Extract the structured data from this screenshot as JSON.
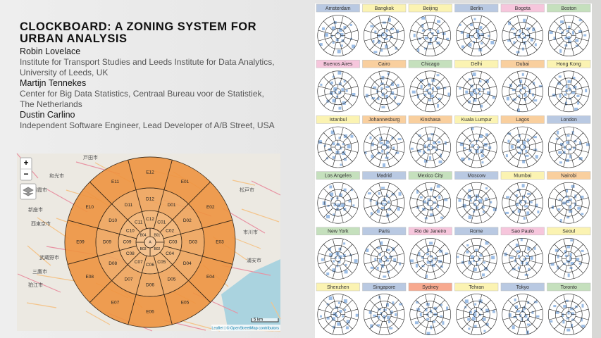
{
  "header": {
    "title": "CLOCKBOARD: A ZONING SYSTEM FOR URBAN ANALYSIS"
  },
  "authors": [
    {
      "name": "Robin Lovelace",
      "affiliation": "Institute for Transport Studies and Leeds Institute for Data Analytics, University of Leeds, UK"
    },
    {
      "name": "Martijn Tennekes",
      "affiliation": "Center for Big Data Statistics, Centraal Bureau voor de Statistiek, The Netherlands"
    },
    {
      "name": "Dustin Carlino",
      "affiliation": "Independent Software Engineer, Lead Developer of A/B Street, USA"
    }
  ],
  "map": {
    "zoom_in": "+",
    "zoom_out": "−",
    "scale": "5 km",
    "attribution": "Leaflet | © OpenStreetMap contributors",
    "place_labels": [
      "戸田市",
      "和光市",
      "朝霞市",
      "新座市",
      "西東京市",
      "武蔵野市",
      "三鷹市",
      "狛江市",
      "松戸市",
      "市川市",
      "浦安市"
    ],
    "rings": [
      {
        "labels": [
          "A"
        ]
      },
      {
        "labels": [
          "B01",
          "B02",
          "B03",
          "B04"
        ]
      },
      {
        "labels": [
          "C01",
          "C02",
          "C03",
          "C04",
          "C05",
          "C06",
          "C07",
          "C08",
          "C09",
          "C10",
          "C11",
          "C12"
        ]
      },
      {
        "labels": [
          "D01",
          "D02",
          "D03",
          "D04",
          "D05",
          "D06",
          "D07",
          "D08",
          "D09",
          "D10",
          "D11",
          "D12"
        ]
      },
      {
        "labels": [
          "E01",
          "E02",
          "E03",
          "E04",
          "E05",
          "E06",
          "E07",
          "E08",
          "E09",
          "E10",
          "E11",
          "E12"
        ]
      }
    ]
  },
  "cities": [
    {
      "name": "Amsterdam",
      "color": "#b9c9e2"
    },
    {
      "name": "Bangkok",
      "color": "#fbf3b2"
    },
    {
      "name": "Beijing",
      "color": "#fbf3b2"
    },
    {
      "name": "Berlin",
      "color": "#b9c9e2"
    },
    {
      "name": "Bogota",
      "color": "#f6c6dc"
    },
    {
      "name": "Boston",
      "color": "#c5e0bd"
    },
    {
      "name": "Buenos Aires",
      "color": "#f6c6dc"
    },
    {
      "name": "Cairo",
      "color": "#f9cf9e"
    },
    {
      "name": "Chicago",
      "color": "#c5e0bd"
    },
    {
      "name": "Delhi",
      "color": "#fbf3b2"
    },
    {
      "name": "Dubai",
      "color": "#f9cf9e"
    },
    {
      "name": "Hong Kong",
      "color": "#fbf3b2"
    },
    {
      "name": "Istanbul",
      "color": "#fbf3b2"
    },
    {
      "name": "Johannesburg",
      "color": "#f9cf9e"
    },
    {
      "name": "Kinshasa",
      "color": "#f9cf9e"
    },
    {
      "name": "Kuala Lumpur",
      "color": "#fbf3b2"
    },
    {
      "name": "Lagos",
      "color": "#f9cf9e"
    },
    {
      "name": "London",
      "color": "#b9c9e2"
    },
    {
      "name": "Los Angeles",
      "color": "#c5e0bd"
    },
    {
      "name": "Madrid",
      "color": "#b9c9e2"
    },
    {
      "name": "Mexico City",
      "color": "#c5e0bd"
    },
    {
      "name": "Moscow",
      "color": "#b9c9e2"
    },
    {
      "name": "Mumbai",
      "color": "#fbf3b2"
    },
    {
      "name": "Nairobi",
      "color": "#f9cf9e"
    },
    {
      "name": "New York",
      "color": "#c5e0bd"
    },
    {
      "name": "Paris",
      "color": "#b9c9e2"
    },
    {
      "name": "Rio de Janeiro",
      "color": "#f6c6dc"
    },
    {
      "name": "Rome",
      "color": "#b9c9e2"
    },
    {
      "name": "Sao Paulo",
      "color": "#f6c6dc"
    },
    {
      "name": "Seoul",
      "color": "#fbf3b2"
    },
    {
      "name": "Shenzhen",
      "color": "#fbf3b2"
    },
    {
      "name": "Singapore",
      "color": "#b9c9e2"
    },
    {
      "name": "Sydney",
      "color": "#f7a98f"
    },
    {
      "name": "Tehran",
      "color": "#fbf3b2"
    },
    {
      "name": "Tokyo",
      "color": "#b9c9e2"
    },
    {
      "name": "Toronto",
      "color": "#c5e0bd"
    }
  ]
}
